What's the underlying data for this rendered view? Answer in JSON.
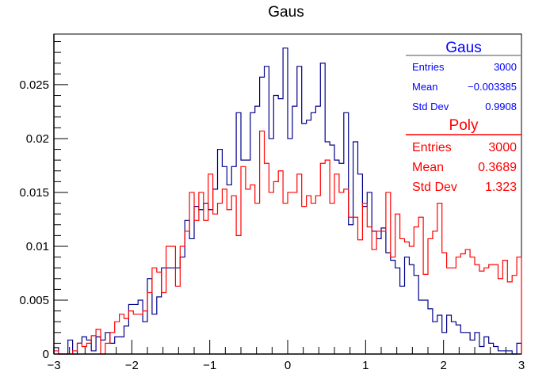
{
  "chart_data": {
    "type": "histogram",
    "title": "Gaus",
    "xlabel": "",
    "ylabel": "",
    "xlim": [
      -3,
      3
    ],
    "ylim": [
      0,
      0.0297
    ],
    "bins": 100,
    "x_ticks": [
      "−3",
      "−2",
      "−1",
      "0",
      "1",
      "2",
      "3"
    ],
    "y_ticks": [
      "0",
      "0.005",
      "0.01",
      "0.015",
      "0.02",
      "0.025"
    ],
    "grid": false,
    "series": [
      {
        "name": "Gaus",
        "color": "#00008b",
        "values": [
          0.0006,
          0,
          0,
          0.0013,
          0,
          0.001,
          0.0016,
          0.0013,
          0.0003,
          0.0016,
          0.0013,
          0.002,
          0.001,
          0.0016,
          0.0016,
          0.0026,
          0.0046,
          0.0046,
          0.005,
          0.003,
          0.007,
          0.0037,
          0.0053,
          0.008,
          0.008,
          0.008,
          0.008,
          0.009,
          0.0124,
          0.0107,
          0.0137,
          0.0134,
          0.014,
          0.0134,
          0.0153,
          0.019,
          0.0174,
          0.0157,
          0.0174,
          0.0224,
          0.018,
          0.018,
          0.0224,
          0.023,
          0.0257,
          0.0267,
          0.02,
          0.024,
          0.0237,
          0.0284,
          0.02,
          0.023,
          0.0267,
          0.0214,
          0.0217,
          0.0224,
          0.023,
          0.027,
          0.0197,
          0.0194,
          0.018,
          0.0177,
          0.0224,
          0.012,
          0.0197,
          0.0167,
          0.0137,
          0.015,
          0.0114,
          0.0107,
          0.0117,
          0.0094,
          0.0087,
          0.008,
          0.0063,
          0.009,
          0.0083,
          0.0073,
          0.005,
          0.005,
          0.0042,
          0.003,
          0.0036,
          0.002,
          0.0036,
          0.003,
          0.0027,
          0.002,
          0.002,
          0.0013,
          0.002,
          0.0007,
          0.0016,
          0.001,
          0.0007,
          0.0003,
          0.0003,
          0.0003,
          0,
          0.001
        ]
      },
      {
        "name": "Poly",
        "color": "#ff0000",
        "values": [
          0.0003,
          0,
          0,
          0,
          0.0003,
          0.001,
          0.0007,
          0.001,
          0.0017,
          0.0023,
          0,
          0.001,
          0.002,
          0.003,
          0.0037,
          0.0033,
          0.004,
          0.0037,
          0.0037,
          0.004,
          0.0057,
          0.008,
          0.0076,
          0.0057,
          0.01,
          0.01,
          0.0063,
          0.01,
          0.0114,
          0.015,
          0.0124,
          0.015,
          0.0124,
          0.0167,
          0.013,
          0.014,
          0.0153,
          0.0134,
          0.0147,
          0.011,
          0.0174,
          0.0153,
          0.0157,
          0.014,
          0.0207,
          0.0177,
          0.015,
          0.016,
          0.017,
          0.014,
          0.015,
          0.015,
          0.0167,
          0.0137,
          0.0147,
          0.014,
          0.0147,
          0.0177,
          0.018,
          0.014,
          0.0167,
          0.015,
          0.0153,
          0.0127,
          0.0127,
          0.0106,
          0.014,
          0.0118,
          0.0097,
          0.0114,
          0.0114,
          0.015,
          0.009,
          0.013,
          0.0107,
          0.0104,
          0.01,
          0.0118,
          0.0127,
          0.0074,
          0.0107,
          0.0114,
          0.014,
          0.0094,
          0.008,
          0.008,
          0.009,
          0.0093,
          0.0097,
          0.009,
          0.0083,
          0.0077,
          0.008,
          0.0083,
          0.0083,
          0.007,
          0.0087,
          0.0067,
          0.0073,
          0.009
        ]
      }
    ]
  },
  "stats": [
    {
      "name": "Gaus",
      "color": "#0000ff",
      "rows": [
        {
          "label": "Entries",
          "value": "3000"
        },
        {
          "label": "Mean",
          "value": "−0.003385"
        },
        {
          "label": "Std Dev",
          "value": "0.9908"
        }
      ]
    },
    {
      "name": "Poly",
      "color": "#ff0000",
      "rows": [
        {
          "label": "Entries",
          "value": "3000"
        },
        {
          "label": "Mean",
          "value": "0.3689"
        },
        {
          "label": "Std Dev",
          "value": "1.323"
        }
      ]
    }
  ]
}
